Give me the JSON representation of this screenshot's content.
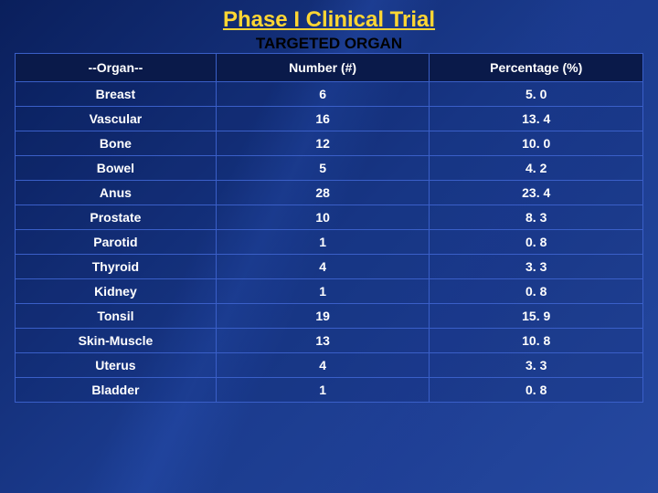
{
  "title": "Phase I Clinical Trial",
  "subtitle": "TARGETED ORGAN",
  "table": {
    "columns": [
      "--Organ--",
      "Number (#)",
      "Percentage (%)"
    ],
    "rows": [
      [
        "Breast",
        "6",
        "5. 0"
      ],
      [
        "Vascular",
        "16",
        "13. 4"
      ],
      [
        "Bone",
        "12",
        "10. 0"
      ],
      [
        "Bowel",
        "5",
        "4. 2"
      ],
      [
        "Anus",
        "28",
        "23. 4"
      ],
      [
        "Prostate",
        "10",
        "8. 3"
      ],
      [
        "Parotid",
        "1",
        "0. 8"
      ],
      [
        "Thyroid",
        "4",
        "3. 3"
      ],
      [
        "Kidney",
        "1",
        "0. 8"
      ],
      [
        "Tonsil",
        "19",
        "15. 9"
      ],
      [
        "Skin-Muscle",
        "13",
        "10. 8"
      ],
      [
        "Uterus",
        "4",
        "3. 3"
      ],
      [
        "Bladder",
        "1",
        "0. 8"
      ]
    ]
  },
  "colors": {
    "title_color": "#ffd633",
    "header_bg": "#0a1a4a",
    "text_color": "#ffffff",
    "border_color": "#3a5fc8"
  }
}
